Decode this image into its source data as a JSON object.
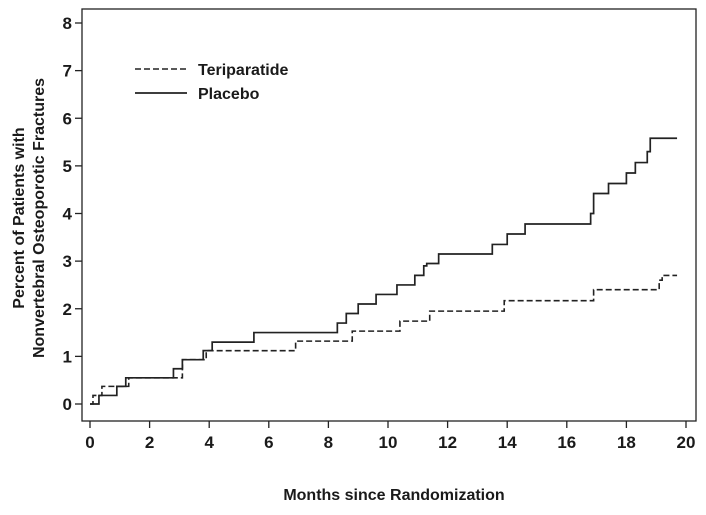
{
  "chart_data": {
    "type": "line",
    "title": "",
    "xlabel": "Months since Randomization",
    "ylabel_lines": [
      "Percent of Patients with",
      "Nonvertebral Osteoporotic Fractures"
    ],
    "xlim": [
      0,
      20
    ],
    "ylim": [
      0,
      8
    ],
    "xticks": [
      "0",
      "2",
      "4",
      "6",
      "8",
      "10",
      "12",
      "14",
      "16",
      "18",
      "20"
    ],
    "yticks": [
      "0",
      "1",
      "2",
      "3",
      "4",
      "5",
      "6",
      "7",
      "8"
    ],
    "grid": false,
    "legend_position": "top-left",
    "step": true,
    "series": [
      {
        "name": "Teriparatide",
        "style": "dashed",
        "color": "#222222",
        "x": [
          0,
          0.1,
          0.4,
          1.3,
          3.1,
          3.9,
          6.9,
          8.8,
          10.4,
          11.4,
          13.9,
          16.9,
          19.1,
          19.2,
          19.7
        ],
        "y": [
          0,
          0.18,
          0.37,
          0.55,
          0.93,
          1.12,
          1.32,
          1.53,
          1.74,
          1.95,
          2.17,
          2.4,
          2.6,
          2.7,
          2.7
        ]
      },
      {
        "name": "Placebo",
        "style": "solid",
        "color": "#222222",
        "x": [
          0,
          0.3,
          0.9,
          1.2,
          2.8,
          3.1,
          3.8,
          4.1,
          5.5,
          8.3,
          8.6,
          9.0,
          9.6,
          10.3,
          10.9,
          11.2,
          11.3,
          11.7,
          13.5,
          14.0,
          14.6,
          16.8,
          16.9,
          17.4,
          18.0,
          18.3,
          18.7,
          18.8,
          19.7
        ],
        "y": [
          0,
          0.18,
          0.37,
          0.55,
          0.74,
          0.93,
          1.12,
          1.3,
          1.5,
          1.7,
          1.9,
          2.1,
          2.3,
          2.5,
          2.7,
          2.9,
          2.95,
          3.15,
          3.35,
          3.57,
          3.78,
          4.0,
          4.42,
          4.63,
          4.85,
          5.07,
          5.3,
          5.58,
          5.58
        ]
      }
    ]
  }
}
